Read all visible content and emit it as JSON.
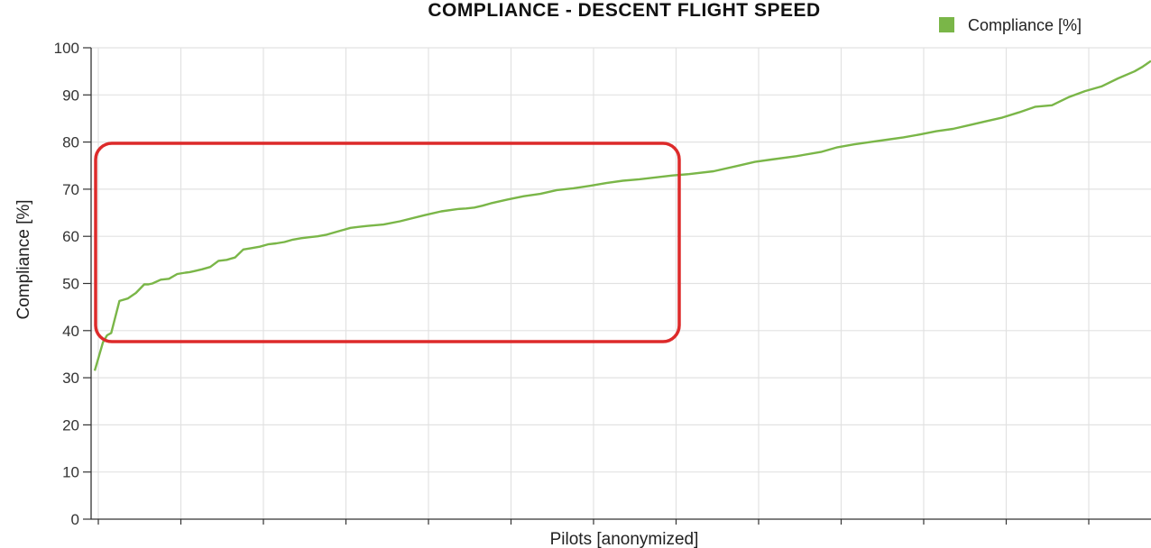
{
  "chart_data": {
    "type": "line",
    "title": "COMPLIANCE - DESCENT FLIGHT SPEED",
    "xlabel": "Pilots [anonymized]",
    "ylabel": "Compliance [%]",
    "ylim": [
      0,
      100
    ],
    "yticks": [
      0,
      10,
      20,
      30,
      40,
      50,
      60,
      70,
      80,
      90,
      100
    ],
    "xlim": [
      0,
      128
    ],
    "grid": true,
    "legend_position": "top-right",
    "series": [
      {
        "name": "Compliance [%]",
        "color": "#7ab648",
        "x": [
          0,
          0.5,
          1,
          1.5,
          2,
          3,
          4,
          5,
          6,
          6.5,
          7,
          8,
          9,
          10,
          11,
          11.5,
          12,
          13,
          14,
          15,
          16,
          17,
          18,
          19,
          20,
          21,
          22,
          23,
          24,
          25,
          26,
          27,
          28,
          29,
          30,
          31,
          32,
          33,
          35,
          37,
          40,
          42,
          44,
          45,
          46,
          47,
          48,
          50,
          52,
          54,
          56,
          58,
          60,
          62,
          64,
          66,
          68,
          70,
          72,
          75,
          78,
          80,
          82,
          85,
          88,
          90,
          92,
          94,
          96,
          98,
          100,
          102,
          104,
          106,
          108,
          110,
          112,
          114,
          116,
          118,
          120,
          122,
          124,
          126,
          127,
          128
        ],
        "values": [
          31.5,
          34.5,
          37.5,
          39,
          39.5,
          46.3,
          46.8,
          48,
          49.8,
          49.8,
          50,
          50.8,
          51,
          52,
          52.3,
          52.4,
          52.6,
          53,
          53.5,
          54.8,
          55,
          55.5,
          57.2,
          57.5,
          57.8,
          58.3,
          58.5,
          58.8,
          59.3,
          59.6,
          59.8,
          60,
          60.3,
          60.8,
          61.3,
          61.8,
          62,
          62.2,
          62.5,
          63.2,
          64.5,
          65.3,
          65.8,
          65.9,
          66.1,
          66.5,
          67,
          67.8,
          68.5,
          69,
          69.8,
          70.2,
          70.7,
          71.3,
          71.8,
          72.1,
          72.5,
          72.9,
          73.2,
          73.8,
          75,
          75.8,
          76.3,
          77,
          77.9,
          78.9,
          79.5,
          80,
          80.5,
          81,
          81.6,
          82.3,
          82.8,
          83.6,
          84.4,
          85.2,
          86.3,
          87.5,
          87.8,
          89.5,
          90.8,
          91.8,
          93.5,
          95,
          96,
          97.2
        ]
      }
    ]
  }
}
